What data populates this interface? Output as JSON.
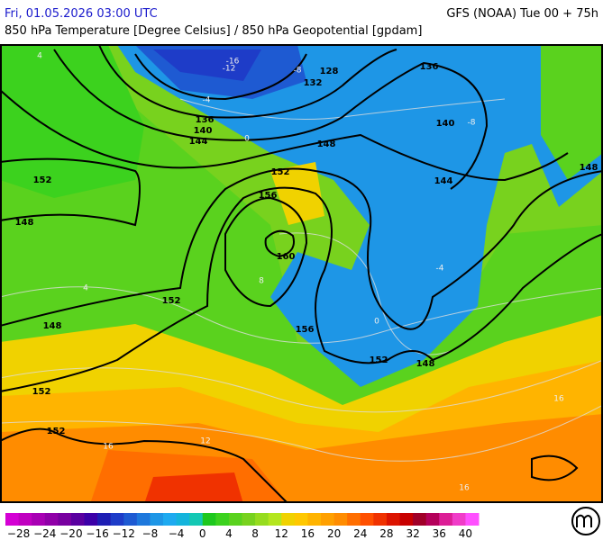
{
  "header": {
    "title": "Fri, 01.05.2026 03:00 UTC",
    "model": "GFS (NOAA) Tue 00 + 75h",
    "subtitle": "850 hPa Temperature [Degree Celsius] / 850 hPa Geopotential [gpdam]"
  },
  "map": {
    "geopotential_labels": [
      "152",
      "148",
      "148",
      "152",
      "152",
      "152",
      "136",
      "140",
      "144",
      "132",
      "128",
      "148",
      "152",
      "156",
      "160",
      "156",
      "152",
      "148",
      "144",
      "140",
      "136",
      "148"
    ],
    "temperature_labels": [
      "-16",
      "-12",
      "-8",
      "-4",
      "0",
      "-8",
      "-4",
      "0",
      "4",
      "8",
      "12",
      "16",
      "16",
      "16",
      "4"
    ]
  },
  "colorbar": {
    "labels": [
      "−28",
      "−24",
      "−20",
      "−16",
      "−12",
      "−8",
      "−4",
      "0",
      "4",
      "8",
      "12",
      "16",
      "20",
      "24",
      "28",
      "32",
      "36",
      "40"
    ],
    "colors": [
      "#d400d4",
      "#c000c0",
      "#a800b4",
      "#9000a8",
      "#7800a0",
      "#5a00a0",
      "#3c00a8",
      "#1e1eb4",
      "#1e3cc8",
      "#1e5ad2",
      "#1e78dc",
      "#1e96e6",
      "#1eaaf0",
      "#14b4dc",
      "#14c8b4",
      "#1ec81e",
      "#3cd21e",
      "#5ad21e",
      "#78d21e",
      "#96dc1e",
      "#b4e61e",
      "#f0d200",
      "#ffc800",
      "#ffb400",
      "#ffa000",
      "#ff8c00",
      "#ff6e00",
      "#ff5000",
      "#f03200",
      "#dc1400",
      "#c80000",
      "#a00028",
      "#b4005a",
      "#dc1e96",
      "#f03cc8",
      "#ff50ff"
    ]
  }
}
